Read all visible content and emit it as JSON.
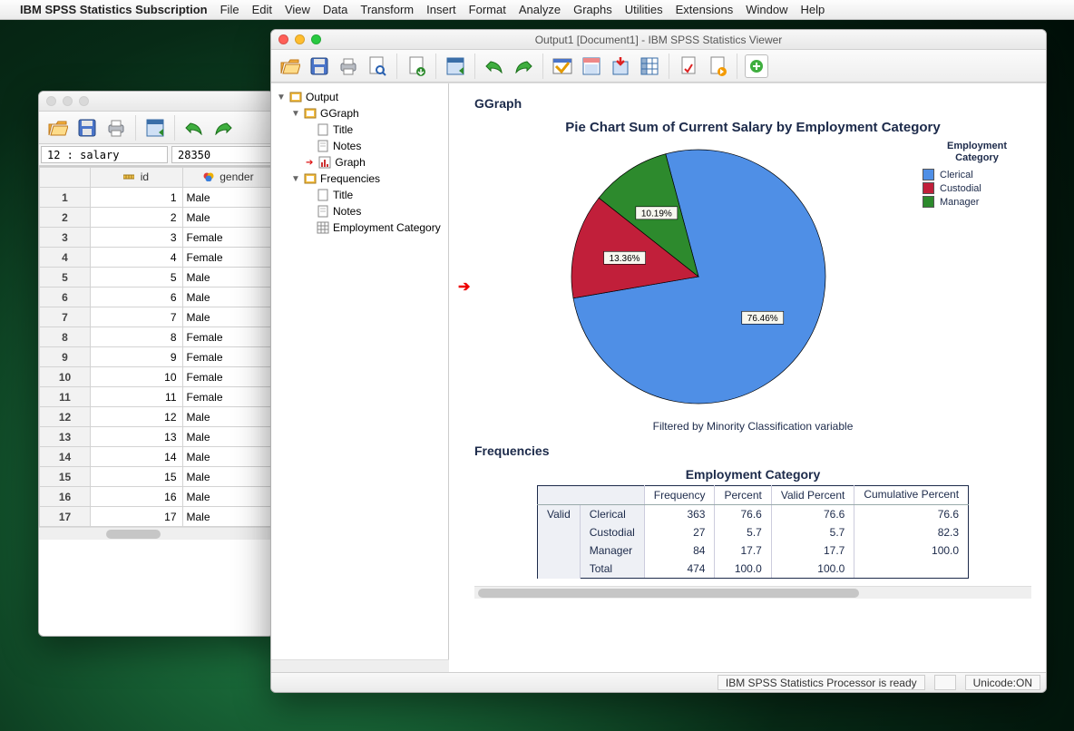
{
  "menubar": {
    "app_name": "IBM SPSS Statistics Subscription",
    "items": [
      "File",
      "Edit",
      "View",
      "Data",
      "Transform",
      "Insert",
      "Format",
      "Analyze",
      "Graphs",
      "Utilities",
      "Extensions",
      "Window",
      "Help"
    ]
  },
  "data_window": {
    "cell_ref": "12 : salary",
    "cell_value": "28350",
    "columns": {
      "id": "id",
      "gender": "gender"
    },
    "rows": [
      {
        "n": "1",
        "id": "1",
        "gender": "Male"
      },
      {
        "n": "2",
        "id": "2",
        "gender": "Male"
      },
      {
        "n": "3",
        "id": "3",
        "gender": "Female"
      },
      {
        "n": "4",
        "id": "4",
        "gender": "Female"
      },
      {
        "n": "5",
        "id": "5",
        "gender": "Male"
      },
      {
        "n": "6",
        "id": "6",
        "gender": "Male"
      },
      {
        "n": "7",
        "id": "7",
        "gender": "Male"
      },
      {
        "n": "8",
        "id": "8",
        "gender": "Female"
      },
      {
        "n": "9",
        "id": "9",
        "gender": "Female"
      },
      {
        "n": "10",
        "id": "10",
        "gender": "Female"
      },
      {
        "n": "11",
        "id": "11",
        "gender": "Female"
      },
      {
        "n": "12",
        "id": "12",
        "gender": "Male"
      },
      {
        "n": "13",
        "id": "13",
        "gender": "Male"
      },
      {
        "n": "14",
        "id": "14",
        "gender": "Male"
      },
      {
        "n": "15",
        "id": "15",
        "gender": "Male"
      },
      {
        "n": "16",
        "id": "16",
        "gender": "Male"
      },
      {
        "n": "17",
        "id": "17",
        "gender": "Male"
      }
    ]
  },
  "output_window": {
    "title": "Output1 [Document1] - IBM SPSS Statistics Viewer",
    "outline": {
      "root": "Output",
      "ggraph": "GGraph",
      "ggraph_children": [
        "Title",
        "Notes",
        "Graph"
      ],
      "frequencies": "Frequencies",
      "frequencies_children": [
        "Title",
        "Notes",
        "Employment Category"
      ]
    },
    "ggraph_heading": "GGraph",
    "chart": {
      "type": "pie",
      "title": "Pie Chart Sum of Current Salary by Employment Category",
      "title_fontsize": 15,
      "filter_note": "Filtered by Minority Classification variable",
      "legend_title": "Employment\nCategory",
      "radius": 140,
      "start_angle_deg": -15,
      "background_color": "#ffffff",
      "slice_border_color": "#000000",
      "label_box_fill": "#f7f7ef",
      "slices": [
        {
          "label": "Clerical",
          "value": 76.46,
          "pct": "76.46%",
          "color": "#4f8fe6"
        },
        {
          "label": "Custodial",
          "value": 13.36,
          "pct": "13.36%",
          "color": "#c11f3a"
        },
        {
          "label": "Manager",
          "value": 10.19,
          "pct": "10.19%",
          "color": "#2d8a2d"
        }
      ]
    },
    "frequencies_heading": "Frequencies",
    "freq_table": {
      "title": "Employment Category",
      "columns": [
        "Frequency",
        "Percent",
        "Valid Percent",
        "Cumulative Percent"
      ],
      "side_label": "Valid",
      "rows": [
        {
          "cat": "Clerical",
          "freq": "363",
          "pct": "76.6",
          "vpct": "76.6",
          "cpct": "76.6"
        },
        {
          "cat": "Custodial",
          "freq": "27",
          "pct": "5.7",
          "vpct": "5.7",
          "cpct": "82.3"
        },
        {
          "cat": "Manager",
          "freq": "84",
          "pct": "17.7",
          "vpct": "17.7",
          "cpct": "100.0"
        },
        {
          "cat": "Total",
          "freq": "474",
          "pct": "100.0",
          "vpct": "100.0",
          "cpct": ""
        }
      ]
    },
    "status": {
      "processor": "IBM SPSS Statistics Processor is ready",
      "unicode": "Unicode:ON"
    }
  }
}
